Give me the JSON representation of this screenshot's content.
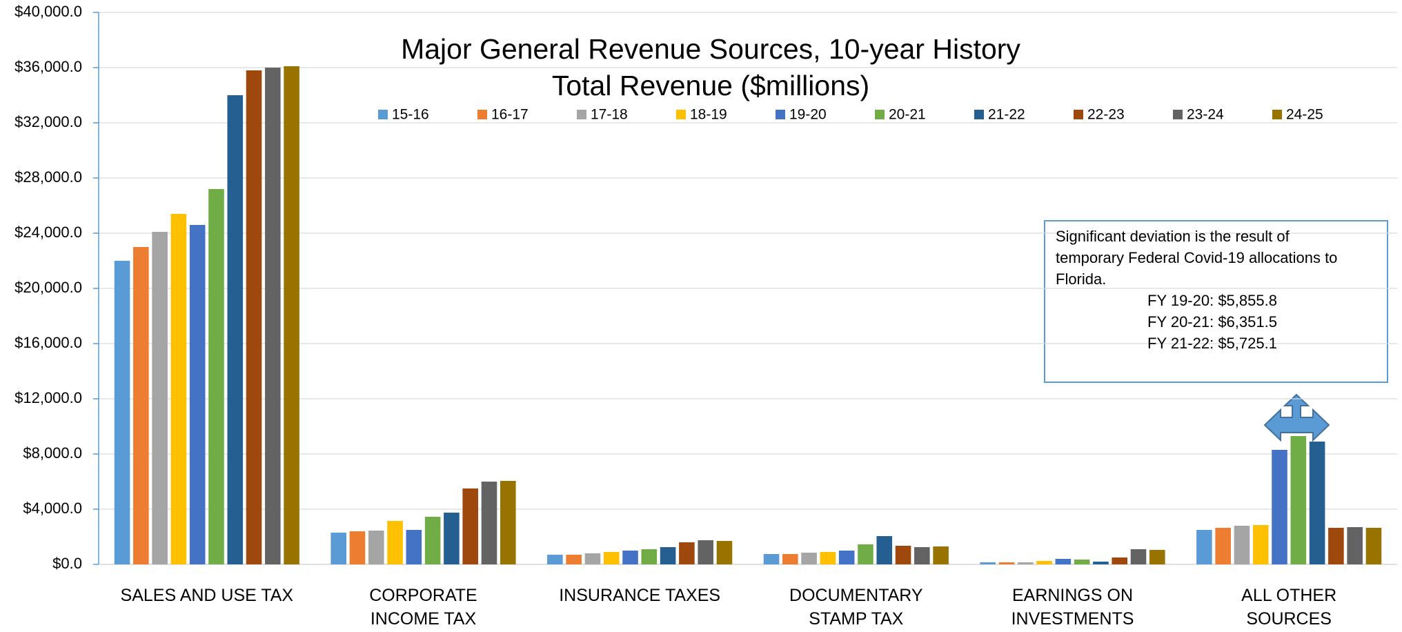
{
  "chart_data": {
    "type": "bar",
    "title": "Major General Revenue Sources, 10-year History",
    "subtitle": "Total Revenue ($millions)",
    "categories": [
      "SALES AND USE TAX",
      "CORPORATE INCOME TAX",
      "INSURANCE TAXES",
      "DOCUMENTARY STAMP TAX",
      "EARNINGS ON INVESTMENTS",
      "ALL OTHER SOURCES"
    ],
    "series": [
      {
        "name": "15-16",
        "color": "#5B9BD5",
        "values": [
          22000,
          2300,
          700,
          750,
          150,
          2500
        ]
      },
      {
        "name": "16-17",
        "color": "#ED7D31",
        "values": [
          23000,
          2400,
          700,
          750,
          150,
          2650
        ]
      },
      {
        "name": "17-18",
        "color": "#A5A5A5",
        "values": [
          24100,
          2450,
          800,
          850,
          150,
          2800
        ]
      },
      {
        "name": "18-19",
        "color": "#FFC000",
        "values": [
          25400,
          3150,
          900,
          900,
          250,
          2850
        ]
      },
      {
        "name": "19-20",
        "color": "#4472C4",
        "values": [
          24600,
          2500,
          1000,
          1000,
          400,
          8300
        ]
      },
      {
        "name": "20-21",
        "color": "#70AD47",
        "values": [
          27200,
          3450,
          1100,
          1450,
          350,
          9300
        ]
      },
      {
        "name": "21-22",
        "color": "#255E91",
        "values": [
          34000,
          3750,
          1250,
          2050,
          200,
          8900
        ]
      },
      {
        "name": "22-23",
        "color": "#9E480E",
        "values": [
          35800,
          5500,
          1600,
          1350,
          500,
          2650
        ]
      },
      {
        "name": "23-24",
        "color": "#636363",
        "values": [
          36000,
          6000,
          1750,
          1250,
          1100,
          2700
        ]
      },
      {
        "name": "24-25",
        "color": "#997300",
        "values": [
          36100,
          6050,
          1700,
          1300,
          1050,
          2650
        ]
      }
    ],
    "ylim": [
      0,
      40000
    ],
    "yticks": [
      {
        "value": 0,
        "label": "$0.0"
      },
      {
        "value": 4000,
        "label": "$4,000.0"
      },
      {
        "value": 8000,
        "label": "$8,000.0"
      },
      {
        "value": 12000,
        "label": "$12,000.0"
      },
      {
        "value": 16000,
        "label": "$16,000.0"
      },
      {
        "value": 20000,
        "label": "$20,000.0"
      },
      {
        "value": 24000,
        "label": "$24,000.0"
      },
      {
        "value": 28000,
        "label": "$28,000.0"
      },
      {
        "value": 32000,
        "label": "$32,000.0"
      },
      {
        "value": 36000,
        "label": "$36,000.0"
      },
      {
        "value": 40000,
        "label": "$40,000.0"
      }
    ],
    "grid": true,
    "legend": "top",
    "annotation": [
      "Significant deviation is the result of",
      "temporary Federal Covid-19 allocations to",
      "Florida.",
      "FY 19-20: $5,855.8",
      "FY 20-21: $6,351.5",
      "FY 21-22: $5,725.1"
    ]
  }
}
